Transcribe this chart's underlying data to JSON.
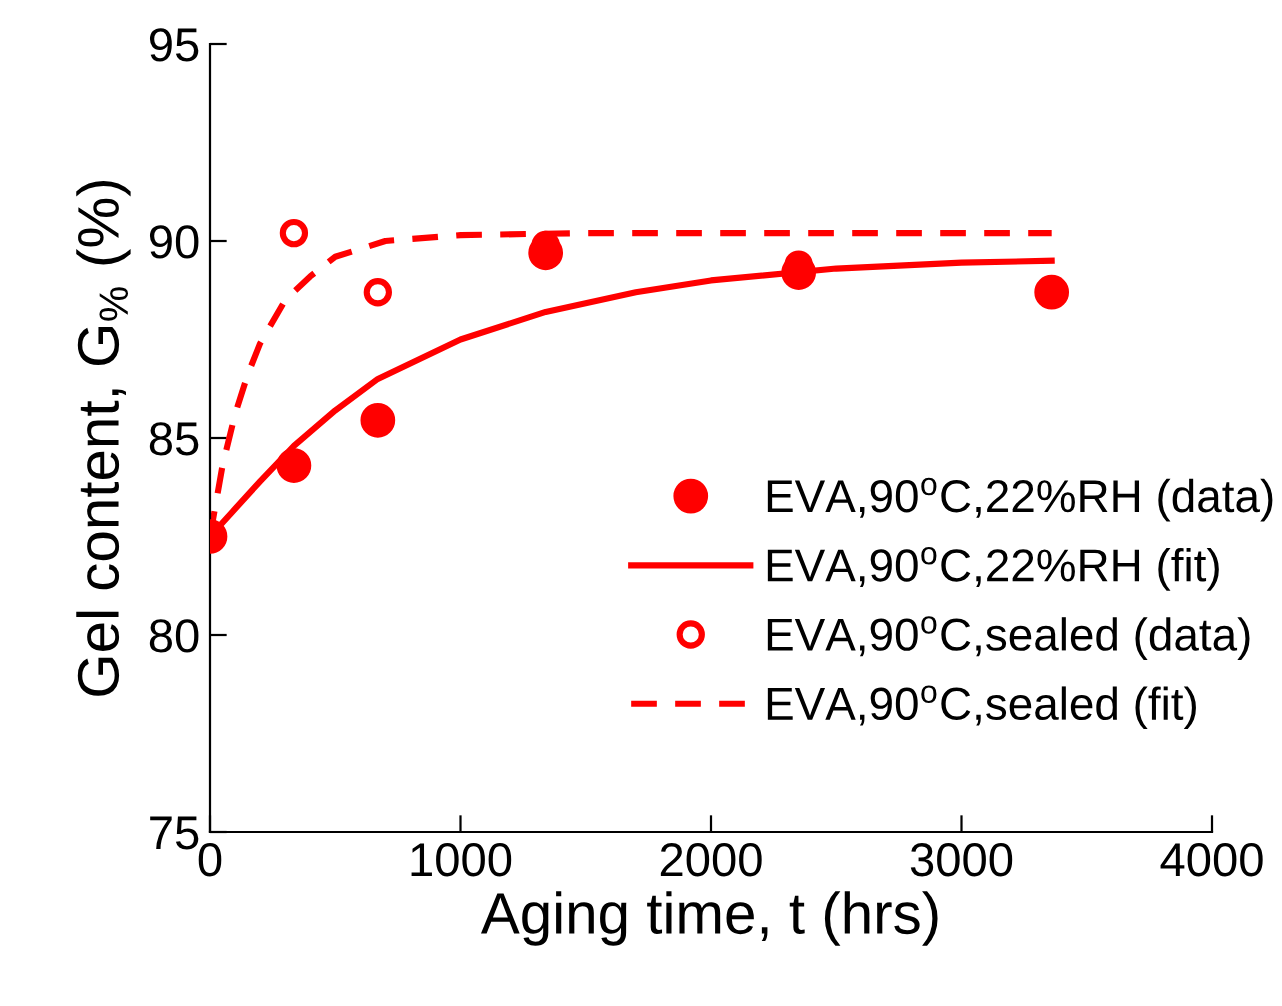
{
  "chart_data": {
    "type": "scatter",
    "xlabel": "Aging time, t (hrs)",
    "ylabel": "Gel content, G$_{%}$ (%)",
    "xlim": [
      0,
      4000
    ],
    "xticks": [
      0,
      1000,
      2000,
      3000,
      4000
    ],
    "ylim": [
      75,
      95
    ],
    "yticks": [
      75,
      80,
      85,
      90,
      95
    ],
    "grid": false,
    "legend": "right",
    "series": [
      {
        "name": "EVA,90$^{o}$C,22%RH (data)",
        "marker": "circle",
        "color": "#ff0000",
        "x": [
          0,
          335,
          670,
          1340,
          2350,
          3360
        ],
        "values": [
          82.5,
          84.3,
          85.45,
          89.7,
          89.2,
          88.7
        ]
      },
      {
        "name": "EVA,90$^{o}$C,22%RH (fit)",
        "type": "line",
        "line_style": "solid",
        "color": "#ff0000",
        "x": [
          0,
          100,
          200,
          335,
          500,
          670,
          1000,
          1340,
          1700,
          2000,
          2500,
          3000,
          3360
        ],
        "values": [
          82.5,
          83.2,
          83.9,
          84.8,
          85.7,
          86.5,
          87.5,
          88.2,
          88.7,
          89.0,
          89.3,
          89.45,
          89.5
        ]
      },
      {
        "name": "EVA,90$^{o}$C,sealed (data)",
        "marker": "circle",
        "color": "#ff0000",
        "x": [
          335,
          670,
          1340,
          2350
        ],
        "values": [
          90.2,
          88.7,
          89.9,
          89.4
        ]
      },
      {
        "name": "EVA,90$^{o}$C,sealed (fit)",
        "type": "line",
        "line_style": "dashed",
        "color": "#ff0000",
        "x": [
          0,
          50,
          100,
          150,
          200,
          300,
          400,
          500,
          700,
          1000,
          1500,
          3360
        ],
        "values": [
          82.5,
          84.3,
          85.6,
          86.6,
          87.4,
          88.5,
          89.1,
          89.6,
          90.0,
          90.15,
          90.2,
          90.2
        ]
      }
    ]
  }
}
